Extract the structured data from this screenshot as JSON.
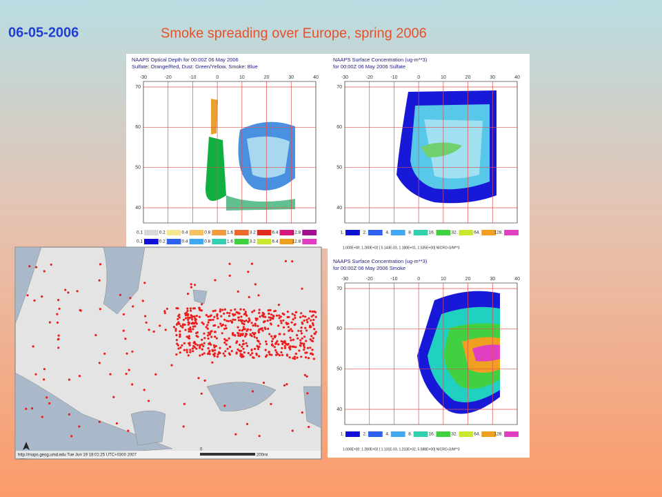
{
  "header": {
    "date": "06-05-2006",
    "title": "Smoke spreading over Europe, spring 2006"
  },
  "panels": [
    {
      "title": "NAAPS Optical Depth for 00:00Z 06 May 2006",
      "subtitle": "Sulfate: Orange/Red, Dust: Green/Yellow, Smoke: Blue",
      "lon_labels": [
        "-30",
        "-20",
        "-10",
        "0",
        "10",
        "20",
        "30",
        "40"
      ],
      "lat_labels": [
        "70",
        "60",
        "50",
        "40"
      ],
      "legend": [
        "0.1",
        "0.2",
        "0.4",
        "0.8",
        "1.6",
        "3.2",
        "6.4",
        "12.8"
      ]
    },
    {
      "title": "NAAPS Surface Concentration (ug-m**3)",
      "subtitle": "for 00:00Z 06 May 2006    Sulfate",
      "lon_labels": [
        "-30",
        "-20",
        "-10",
        "0",
        "10",
        "20",
        "30",
        "40"
      ],
      "lat_labels": [
        "70",
        "60",
        "50",
        "40"
      ],
      "legend": [
        "1.",
        "2.",
        "4.",
        "8.",
        "16.",
        "32.",
        "64.",
        "128."
      ],
      "footnote": "1.000E+00; 1.280E+02    [ 5.143E-03, 1.180E+01, 1.535E+00] NICRO-G/M**3"
    },
    {
      "title": "NAAPS Surface Concentration (ug-m**3)",
      "subtitle": "for 00:00Z 06 May 2006    Smoke",
      "lon_labels": [
        "-30",
        "-20",
        "-10",
        "0",
        "10",
        "20",
        "30",
        "40"
      ],
      "lat_labels": [
        "70",
        "60",
        "50",
        "40"
      ],
      "legend": [
        "1.",
        "2.",
        "4.",
        "8.",
        "16.",
        "32.",
        "64.",
        "128."
      ],
      "footnote": "1.000E+00; 1.280E+02    [ 1.131E-03, 1.233E+02, 5.588E+00] NICRO-G/M**3"
    }
  ],
  "fire_map": {
    "credit": "http://maps.geog.umd.edu Tue Jun 19 18:01:25 UTC+0300 2007",
    "scale": [
      "0",
      "200mi"
    ]
  }
}
